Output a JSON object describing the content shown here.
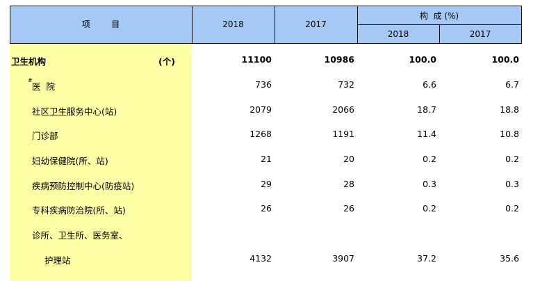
{
  "header": {
    "item": "项        目",
    "year_a": "2018",
    "year_b": "2017",
    "composition": "构  成 (%)",
    "comp_year_a": "2018",
    "comp_year_b": "2017"
  },
  "rows": [
    {
      "label": "卫生机构",
      "unit": "(个)",
      "v2018": "11100",
      "v2017": "10986",
      "c2018": "100.0",
      "c2017": "100.0"
    },
    {
      "marker": "#",
      "label": "医  院",
      "v2018": "736",
      "v2017": "732",
      "c2018": "6.6",
      "c2017": "6.7"
    },
    {
      "label": "社区卫生服务中心(站)",
      "v2018": "2079",
      "v2017": "2066",
      "c2018": "18.7",
      "c2017": "18.8"
    },
    {
      "label": "门诊部",
      "v2018": "1268",
      "v2017": "1191",
      "c2018": "11.4",
      "c2017": "10.8"
    },
    {
      "label": "妇幼保健院(所、站)",
      "v2018": "21",
      "v2017": "20",
      "c2018": "0.2",
      "c2017": "0.2"
    },
    {
      "label": "疾病预防控制中心(防疫站)",
      "v2018": "29",
      "v2017": "28",
      "c2018": "0.3",
      "c2017": "0.3"
    },
    {
      "label": "专科疾病防治院(所、站)",
      "v2018": "26",
      "v2017": "26",
      "c2018": "0.2",
      "c2017": "0.2"
    },
    {
      "label": "诊所、卫生所、医务室、",
      "label2": "护理站",
      "v2018": "4132",
      "v2017": "3907",
      "c2018": "37.2",
      "c2017": "35.6"
    }
  ]
}
